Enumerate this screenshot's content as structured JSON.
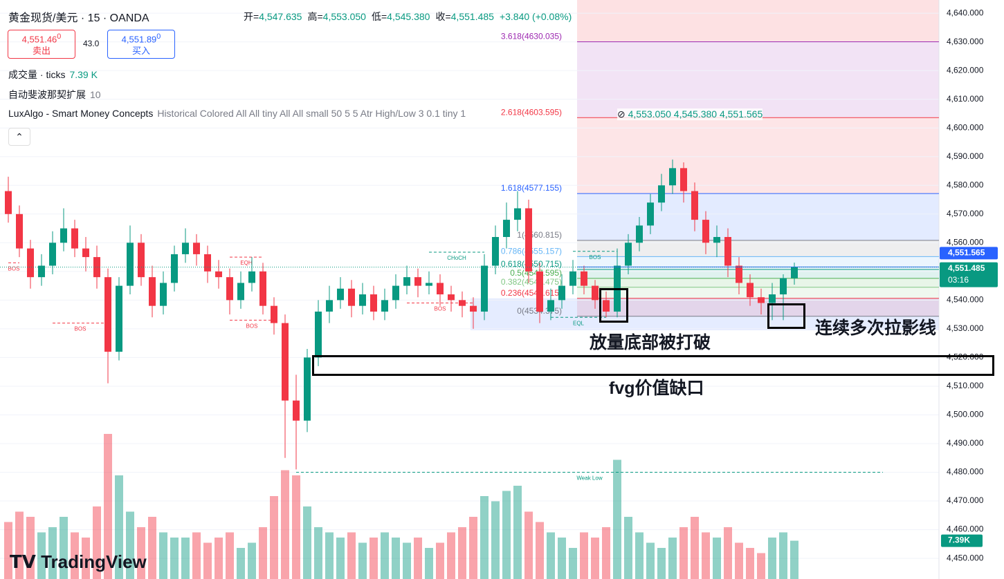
{
  "header": {
    "symbol": "黄金现货/美元 · 15 · OANDA",
    "ohlc": [
      [
        "开=",
        "4,547.635"
      ],
      [
        "高=",
        "4,553.050"
      ],
      [
        "低=",
        "4,545.380"
      ],
      [
        "收=",
        "4,551.485"
      ]
    ],
    "change": "+3.840 (+0.08%)",
    "sell_price": "4,551.46",
    "sell_sup": "0",
    "sell_label": "卖出",
    "spread": "43.0",
    "buy_price": "4,551.89",
    "buy_sup": "0",
    "buy_label": "买入",
    "indicators": [
      {
        "name": "成交量 · ticks",
        "value": "7.39 K"
      },
      {
        "name": "自动斐波那契扩展",
        "value": "10"
      },
      {
        "name": "LuxAlgo - Smart Money Concepts",
        "value": "Historical Colored All All tiny All All small 50 5 5 Atr High/Low 3 0.1 tiny 1"
      }
    ],
    "lux_values": "4,553.050  4,545.380  4,551.565",
    "logo": "TradingView"
  },
  "annotations": {
    "box1": "放量底部被打破",
    "box2": "连续多次拉影线",
    "box3": "fvg价值缺口"
  },
  "chart_data": {
    "type": "candlestick",
    "up_color": "#089981",
    "down_color": "#f23645",
    "ylim": [
      4442.8,
      4644.6
    ],
    "yticks": [
      {
        "value": 4450,
        "label": "4,450.000"
      },
      {
        "value": 4460,
        "label": "4,460.000"
      },
      {
        "value": 4470,
        "label": "4,470.000"
      },
      {
        "value": 4480,
        "label": "4,480.000"
      },
      {
        "value": 4490,
        "label": "4,490.000"
      },
      {
        "value": 4500,
        "label": "4,500.000"
      },
      {
        "value": 4510,
        "label": "4,510.000"
      },
      {
        "value": 4520,
        "label": "4,520.000"
      },
      {
        "value": 4530,
        "label": "4,530.000"
      },
      {
        "value": 4540,
        "label": "4,540.000"
      },
      {
        "value": 4550,
        "label": "4,550.000"
      },
      {
        "value": 4560,
        "label": "4,560.000"
      },
      {
        "value": 4570,
        "label": "4,570.000"
      },
      {
        "value": 4580,
        "label": "4,580.000"
      },
      {
        "value": 4590,
        "label": "4,590.000"
      },
      {
        "value": 4600,
        "label": "4,600.000"
      },
      {
        "value": 4610,
        "label": "4,610.000"
      },
      {
        "value": 4620,
        "label": "4,620.000"
      },
      {
        "value": 4630,
        "label": "4,630.000"
      },
      {
        "value": 4640,
        "label": "4,640.000"
      }
    ],
    "open": [
      4578,
      4570,
      4558,
      4548,
      4552,
      4560,
      4565,
      4558,
      4555,
      4548,
      4522,
      4545,
      4560,
      4548,
      4538,
      4546,
      4556,
      4560,
      4556,
      4550,
      4548,
      4540,
      4546,
      4550,
      4538,
      4532,
      4505,
      4498,
      4520,
      4536,
      4540,
      4544,
      4538,
      4542,
      4536,
      4540,
      4545,
      4548,
      4545,
      4546,
      4542,
      4540,
      4538,
      4536,
      4552,
      4562,
      4568,
      4572,
      4550,
      4536,
      4540,
      4545,
      4550,
      4545,
      4540,
      4536,
      4552,
      4560,
      4566,
      4574,
      4580,
      4586,
      4578,
      4568,
      4560,
      4562,
      4552,
      4546,
      4541,
      4539,
      4542,
      4547.635
    ],
    "high": [
      4583,
      4573,
      4561,
      4556,
      4564,
      4572,
      4568,
      4562,
      4559,
      4551,
      4548,
      4566,
      4563,
      4552,
      4550,
      4559,
      4565,
      4563,
      4559,
      4554,
      4551,
      4550,
      4555,
      4553,
      4541,
      4535,
      4514,
      4523,
      4540,
      4545,
      4548,
      4547,
      4546,
      4545,
      4544,
      4549,
      4552,
      4551,
      4550,
      4549,
      4545,
      4543,
      4541,
      4556,
      4566,
      4574,
      4578,
      4575,
      4553,
      4544,
      4549,
      4554,
      4552,
      4547,
      4543,
      4558,
      4563,
      4569,
      4577,
      4584,
      4589,
      4588,
      4581,
      4571,
      4566,
      4565,
      4555,
      4549,
      4544,
      4546,
      4549,
      4553.05
    ],
    "low": [
      4567,
      4555,
      4544,
      4545,
      4549,
      4557,
      4555,
      4550,
      4544,
      4511,
      4519,
      4542,
      4545,
      4534,
      4535,
      4543,
      4553,
      4552,
      4546,
      4544,
      4535,
      4537,
      4543,
      4535,
      4528,
      4485,
      4481,
      4494,
      4517,
      4532,
      4537,
      4534,
      4535,
      4533,
      4533,
      4537,
      4542,
      4541,
      4542,
      4538,
      4536,
      4534,
      4530,
      4533,
      4549,
      4558,
      4564,
      4546,
      4532,
      4533,
      4537,
      4542,
      4542,
      4537,
      4534,
      4534,
      4549,
      4557,
      4563,
      4571,
      4577,
      4574,
      4564,
      4556,
      4555,
      4548,
      4542,
      4538,
      4535,
      4533,
      4533,
      4545.38
    ],
    "close": [
      4570,
      4558,
      4548,
      4552,
      4560,
      4565,
      4558,
      4555,
      4548,
      4522,
      4545,
      4560,
      4548,
      4538,
      4546,
      4556,
      4560,
      4556,
      4550,
      4548,
      4540,
      4546,
      4550,
      4538,
      4532,
      4505,
      4498,
      4520,
      4536,
      4540,
      4544,
      4538,
      4542,
      4536,
      4540,
      4545,
      4548,
      4545,
      4546,
      4542,
      4540,
      4538,
      4536,
      4552,
      4562,
      4568,
      4572,
      4550,
      4536,
      4540,
      4545,
      4550,
      4545,
      4540,
      4536,
      4552,
      4560,
      4566,
      4574,
      4580,
      4586,
      4578,
      4568,
      4560,
      4562,
      4552,
      4546,
      4541,
      4539,
      4542,
      4547.645,
      4551.485
    ],
    "volume": [
      11000,
      13000,
      12000,
      9000,
      10000,
      12000,
      9000,
      8000,
      14000,
      28000,
      20000,
      13000,
      10000,
      12000,
      9000,
      8000,
      8000,
      9000,
      7000,
      8000,
      9000,
      6000,
      7000,
      10000,
      16000,
      21000,
      20000,
      14000,
      10000,
      9000,
      8000,
      9000,
      7000,
      8000,
      9000,
      8000,
      7000,
      8000,
      6000,
      7000,
      9000,
      10000,
      12000,
      16000,
      15000,
      17000,
      18000,
      13000,
      11000,
      9000,
      8000,
      6000,
      9000,
      8000,
      10000,
      23000,
      12000,
      9000,
      7000,
      6000,
      8000,
      10000,
      12000,
      9000,
      8000,
      10000,
      7000,
      6000,
      5000,
      8000,
      9000,
      7390
    ],
    "volume_label": "7.39K",
    "fib_levels": [
      {
        "label": "3.618(4630.035)",
        "value": 4630.035,
        "color": "#9c27b0"
      },
      {
        "label": "2.618(4603.595)",
        "value": 4603.595,
        "color": "#f23645"
      },
      {
        "label": "1.618(4577.155)",
        "value": 4577.155,
        "color": "#2962ff"
      },
      {
        "label": "1(4560.815)",
        "value": 4560.815,
        "color": "#787b86"
      },
      {
        "label": "0.786(4555.157)",
        "value": 4555.157,
        "color": "#64b5f6"
      },
      {
        "label": "0.618(4550.715)",
        "value": 4550.715,
        "color": "#089981"
      },
      {
        "label": "0.5(4547.595)",
        "value": 4547.595,
        "color": "#4caf50"
      },
      {
        "label": "0.382(4544.475)",
        "value": 4544.475,
        "color": "#81c784"
      },
      {
        "label": "0.236(4540.615)",
        "value": 4540.615,
        "color": "#f23645"
      },
      {
        "label": "0(4534.375)",
        "value": 4534.375,
        "color": "#787b86"
      }
    ],
    "structures": [
      {
        "label": "BOS",
        "value": 4553,
        "from": 0,
        "to": 1,
        "color": "#f23645"
      },
      {
        "label": "BOS",
        "value": 4532,
        "from": 4,
        "to": 9,
        "color": "#f23645"
      },
      {
        "label": "EQH",
        "value": 4555,
        "from": 20,
        "to": 23,
        "color": "#f23645"
      },
      {
        "label": "BOS",
        "value": 4533,
        "from": 20,
        "to": 24,
        "color": "#f23645"
      },
      {
        "label": "BOS",
        "value": 4539,
        "from": 36,
        "to": 42,
        "color": "#f23645"
      },
      {
        "label": "CHoCH",
        "value": 4556.7,
        "from": 38,
        "to": 43,
        "color": "#089981"
      },
      {
        "label": "BOS",
        "value": 4557,
        "from": 51,
        "to": 55,
        "color": "#089981"
      },
      {
        "label": "EQL",
        "value": 4534,
        "from": 49,
        "to": 54,
        "color": "#089981"
      },
      {
        "label": "Weak Low",
        "value": 4480,
        "from": 26,
        "to": 79,
        "color": "#089981"
      }
    ],
    "price_labels": [
      {
        "value": 4551.565,
        "label": "4,551.565",
        "color": "#2962ff"
      },
      {
        "value": 4551.485,
        "label": "4,551.485",
        "color": "#089981",
        "sub": "03:16"
      }
    ]
  }
}
